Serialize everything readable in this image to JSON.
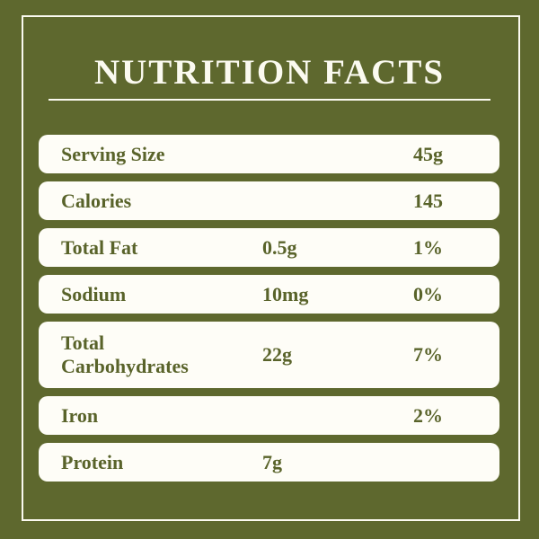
{
  "title": "NUTRITION FACTS",
  "colors": {
    "background": "#5e682e",
    "frame_border": "#fbfaf0",
    "title_text": "#fbfaf0",
    "row_background": "#fefdf7",
    "nutrient_text": "#59632a"
  },
  "table": {
    "rows": [
      {
        "label": "Serving Size",
        "amount": "",
        "daily_value": "45g"
      },
      {
        "label": "Calories",
        "amount": "",
        "daily_value": "145"
      },
      {
        "label": "Total Fat",
        "amount": "0.5g",
        "daily_value": "1%"
      },
      {
        "label": "Sodium",
        "amount": "10mg",
        "daily_value": "0%"
      },
      {
        "label": "Total Carbohydrates",
        "amount": "22g",
        "daily_value": "7%"
      },
      {
        "label": "Iron",
        "amount": "",
        "daily_value": "2%"
      },
      {
        "label": "Protein",
        "amount": "7g",
        "daily_value": ""
      }
    ]
  }
}
